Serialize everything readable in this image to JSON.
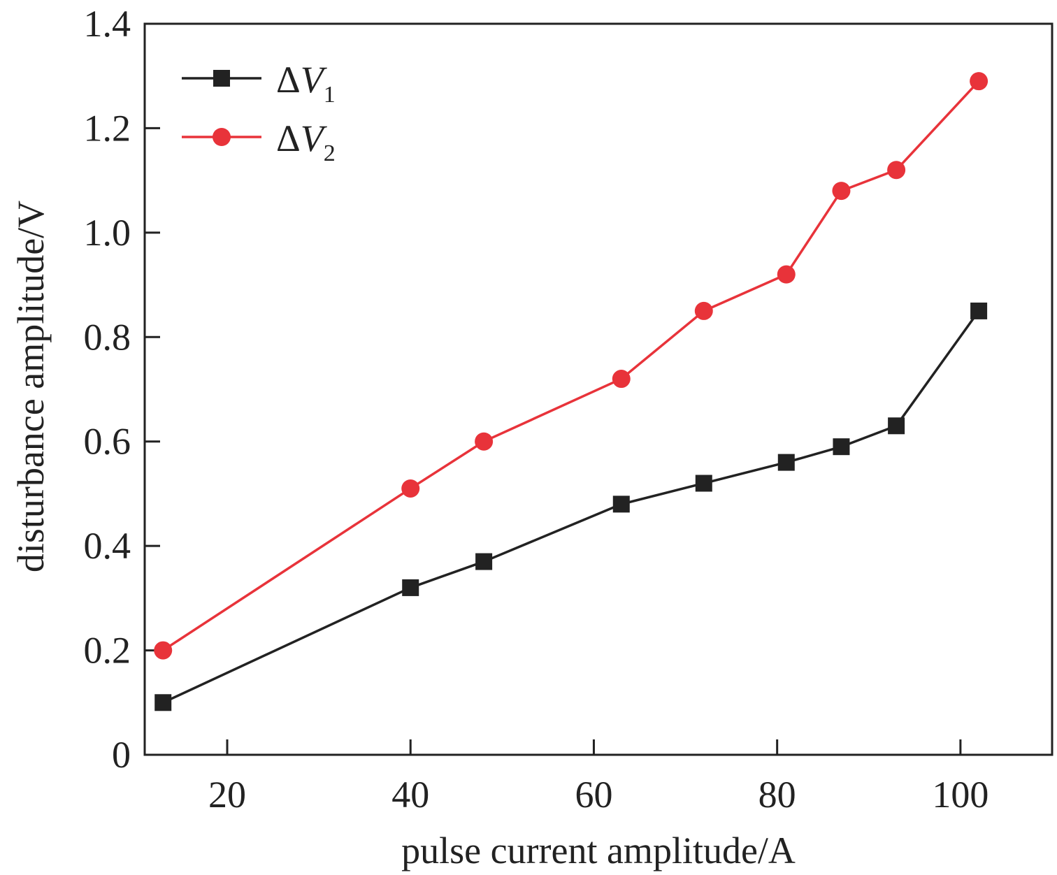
{
  "chart_data": {
    "type": "line",
    "xlabel": "pulse current amplitude/A",
    "ylabel": "disturbance amplitude/V",
    "xlim": [
      11,
      110
    ],
    "ylim": [
      0,
      1.4
    ],
    "x_ticks": [
      20,
      40,
      60,
      80,
      100
    ],
    "x_tick_labels": [
      "20",
      "40",
      "60",
      "80",
      "100"
    ],
    "y_ticks": [
      0,
      0.2,
      0.4,
      0.6,
      0.8,
      1.0,
      1.2,
      1.4
    ],
    "y_tick_labels": [
      "0",
      "0.2",
      "0.4",
      "0.6",
      "0.8",
      "1.0",
      "1.2",
      "1.4"
    ],
    "legend_position": "top-left",
    "grid": false,
    "series": [
      {
        "name": "ΔV1",
        "legend_main": "ΔV",
        "legend_sub": "1",
        "marker": "square",
        "color": "#222222",
        "x": [
          13,
          40,
          48,
          63,
          72,
          81,
          87,
          93,
          102
        ],
        "y": [
          0.1,
          0.32,
          0.37,
          0.48,
          0.52,
          0.56,
          0.59,
          0.63,
          0.85
        ]
      },
      {
        "name": "ΔV2",
        "legend_main": "ΔV",
        "legend_sub": "2",
        "marker": "circle",
        "color": "#e8333a",
        "x": [
          13,
          40,
          48,
          63,
          72,
          81,
          87,
          93,
          102
        ],
        "y": [
          0.2,
          0.51,
          0.6,
          0.72,
          0.85,
          0.92,
          1.08,
          1.12,
          1.29
        ]
      }
    ]
  }
}
